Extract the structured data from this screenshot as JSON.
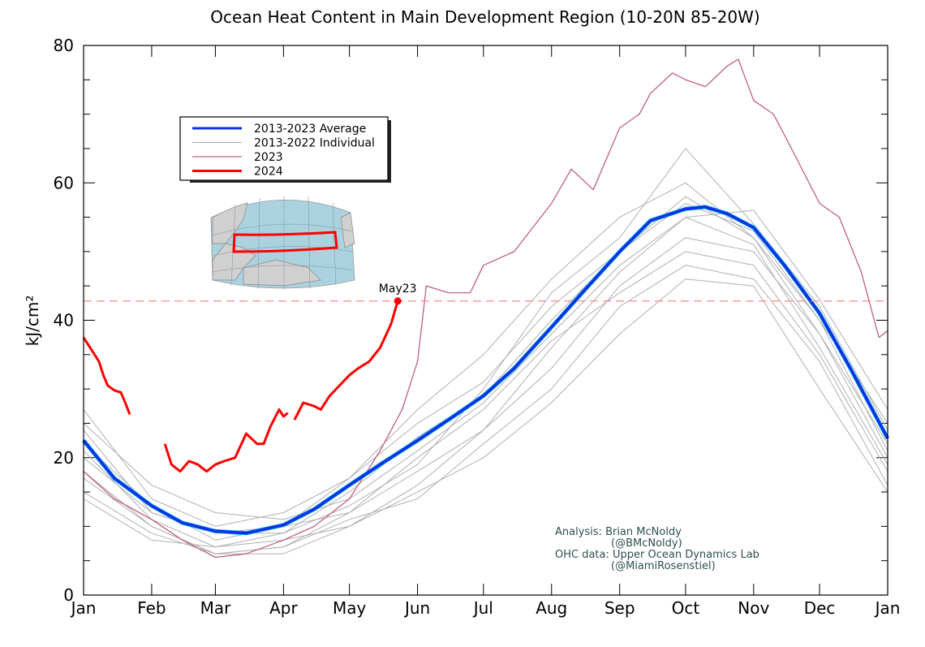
{
  "chart_data": {
    "type": "line",
    "title": "Ocean Heat Content in Main Development Region (10-20N 85-20W)",
    "ylabel": "kJ/cm²",
    "xlabel": "",
    "ylim": [
      0,
      80
    ],
    "xlim": [
      "2024-01-01",
      "2025-01-01"
    ],
    "yticks": [
      0,
      20,
      40,
      60,
      80
    ],
    "xticks": [
      {
        "date": "2024-01-01",
        "label": "Jan"
      },
      {
        "date": "2024-02-01",
        "label": "Feb"
      },
      {
        "date": "2024-03-01",
        "label": "Mar"
      },
      {
        "date": "2024-04-01",
        "label": "Apr"
      },
      {
        "date": "2024-05-01",
        "label": "May"
      },
      {
        "date": "2024-06-01",
        "label": "Jun"
      },
      {
        "date": "2024-07-01",
        "label": "Jul"
      },
      {
        "date": "2024-08-01",
        "label": "Aug"
      },
      {
        "date": "2024-09-01",
        "label": "Sep"
      },
      {
        "date": "2024-10-01",
        "label": "Oct"
      },
      {
        "date": "2024-11-01",
        "label": "Nov"
      },
      {
        "date": "2024-12-01",
        "label": "Dec"
      },
      {
        "date": "2025-01-01",
        "label": "Jan"
      }
    ],
    "grid": false,
    "legend_placement": "upper-left",
    "reference_line": {
      "value": 42.8,
      "color": "#f08080",
      "style": "dashed"
    },
    "annotation": {
      "label": "May23",
      "date": "2024-05-23",
      "value": 42.8
    },
    "credits": [
      "Analysis: Brian McNoldy",
      "(@BMcNoldy)",
      "OHC data: Upper Ocean Dynamics Lab",
      "(@MiamiRosenstiel)"
    ],
    "series": [
      {
        "name": "2013-2022 Individual",
        "color": "#b0b0b0",
        "width": 1,
        "lines": [
          {
            "dates": [
              "2024-01-01",
              "2024-02-01",
              "2024-03-01",
              "2024-04-01",
              "2024-05-01",
              "2024-06-01",
              "2024-07-01",
              "2024-08-01",
              "2024-09-01",
              "2024-10-01",
              "2024-11-01",
              "2024-12-01",
              "2025-01-01"
            ],
            "values": [
              27,
              14,
              10,
              12,
              17,
              25,
              31,
              42,
              50,
              58,
              52,
              40,
              25
            ]
          },
          {
            "dates": [
              "2024-01-01",
              "2024-02-01",
              "2024-03-01",
              "2024-04-01",
              "2024-05-01",
              "2024-06-01",
              "2024-07-01",
              "2024-08-01",
              "2024-09-01",
              "2024-10-01",
              "2024-11-01",
              "2024-12-01",
              "2025-01-01"
            ],
            "values": [
              25,
              16,
              12,
              11,
              14,
              21,
              28,
              38,
              48,
              55,
              56,
              43,
              27
            ]
          },
          {
            "dates": [
              "2024-01-01",
              "2024-02-01",
              "2024-03-01",
              "2024-04-01",
              "2024-05-01",
              "2024-06-01",
              "2024-07-01",
              "2024-08-01",
              "2024-09-01",
              "2024-10-01",
              "2024-11-01",
              "2024-12-01",
              "2025-01-01"
            ],
            "values": [
              24,
              12,
              9,
              9,
              13,
              19,
              30,
              44,
              52,
              65,
              54,
              42,
              24
            ]
          },
          {
            "dates": [
              "2024-01-01",
              "2024-02-01",
              "2024-03-01",
              "2024-04-01",
              "2024-05-01",
              "2024-06-01",
              "2024-07-01",
              "2024-08-01",
              "2024-09-01",
              "2024-10-01",
              "2024-11-01",
              "2024-12-01",
              "2025-01-01"
            ],
            "values": [
              22,
              13,
              8,
              10,
              17,
              27,
              35,
              46,
              55,
              60,
              52,
              38,
              22
            ]
          },
          {
            "dates": [
              "2024-01-01",
              "2024-02-01",
              "2024-03-01",
              "2024-04-01",
              "2024-05-01",
              "2024-06-01",
              "2024-07-01",
              "2024-08-01",
              "2024-09-01",
              "2024-10-01",
              "2024-11-01",
              "2024-12-01",
              "2025-01-01"
            ],
            "values": [
              21,
              11,
              7,
              9,
              15,
              23,
              29,
              40,
              50,
              57,
              53,
              40,
              21
            ]
          },
          {
            "dates": [
              "2024-01-01",
              "2024-02-01",
              "2024-03-01",
              "2024-04-01",
              "2024-05-01",
              "2024-06-01",
              "2024-07-01",
              "2024-08-01",
              "2024-09-01",
              "2024-10-01",
              "2024-11-01",
              "2024-12-01",
              "2025-01-01"
            ],
            "values": [
              20,
              12,
              9,
              10,
              12,
              18,
              24,
              33,
              45,
              52,
              50,
              38,
              20
            ]
          },
          {
            "dates": [
              "2024-01-01",
              "2024-02-01",
              "2024-03-01",
              "2024-04-01",
              "2024-05-01",
              "2024-06-01",
              "2024-07-01",
              "2024-08-01",
              "2024-09-01",
              "2024-10-01",
              "2024-11-01",
              "2024-12-01",
              "2025-01-01"
            ],
            "values": [
              18,
              10,
              6,
              6,
              10,
              16,
              24,
              36,
              47,
              55,
              51,
              36,
              19
            ]
          },
          {
            "dates": [
              "2024-01-01",
              "2024-02-01",
              "2024-03-01",
              "2024-04-01",
              "2024-05-01",
              "2024-06-01",
              "2024-07-01",
              "2024-08-01",
              "2024-09-01",
              "2024-10-01",
              "2024-11-01",
              "2024-12-01",
              "2025-01-01"
            ],
            "values": [
              17,
              10,
              6,
              7,
              12,
              20,
              27,
              37,
              44,
              50,
              48,
              35,
              18
            ]
          },
          {
            "dates": [
              "2024-01-01",
              "2024-02-01",
              "2024-03-01",
              "2024-04-01",
              "2024-05-01",
              "2024-06-01",
              "2024-07-01",
              "2024-08-01",
              "2024-09-01",
              "2024-10-01",
              "2024-11-01",
              "2024-12-01",
              "2025-01-01"
            ],
            "values": [
              15,
              9,
              6,
              7,
              11,
              14,
              22,
              30,
              42,
              48,
              46,
              34,
              16
            ]
          },
          {
            "dates": [
              "2024-01-01",
              "2024-02-01",
              "2024-03-01",
              "2024-04-01",
              "2024-05-01",
              "2024-06-01",
              "2024-07-01",
              "2024-08-01",
              "2024-09-01",
              "2024-10-01",
              "2024-11-01",
              "2024-12-01",
              "2025-01-01"
            ],
            "values": [
              14,
              8,
              7,
              8,
              10,
              15,
              20,
              28,
              38,
              46,
              45,
              30,
              15
            ]
          }
        ]
      },
      {
        "name": "2023",
        "color": "#c0607a",
        "width": 1.3,
        "lines": [
          {
            "dates": [
              "2024-01-01",
              "2024-01-15",
              "2024-02-01",
              "2024-02-15",
              "2024-03-01",
              "2024-03-15",
              "2024-04-01",
              "2024-04-15",
              "2024-05-01",
              "2024-05-15",
              "2024-05-25",
              "2024-06-01",
              "2024-06-05",
              "2024-06-15",
              "2024-06-25",
              "2024-07-01",
              "2024-07-15",
              "2024-08-01",
              "2024-08-10",
              "2024-08-20",
              "2024-09-01",
              "2024-09-10",
              "2024-09-15",
              "2024-09-25",
              "2024-10-01",
              "2024-10-10",
              "2024-10-20",
              "2024-10-25",
              "2024-11-01",
              "2024-11-10",
              "2024-11-15",
              "2024-12-01",
              "2024-12-10",
              "2024-12-20",
              "2024-12-28",
              "2025-01-01"
            ],
            "values": [
              18,
              14,
              11,
              8,
              5.5,
              6,
              8,
              10,
              14,
              21,
              27,
              34,
              45,
              44,
              44,
              48,
              50,
              57,
              62,
              59,
              68,
              70,
              73,
              76,
              75,
              74,
              77,
              78,
              72,
              70,
              67,
              57,
              55,
              47,
              37.5,
              38.5
            ]
          }
        ]
      },
      {
        "name": "2013-2023 Average",
        "color": "#1030e0",
        "width": 3.5,
        "lines": [
          {
            "dates": [
              "2024-01-01",
              "2024-01-15",
              "2024-02-01",
              "2024-02-15",
              "2024-03-01",
              "2024-03-15",
              "2024-04-01",
              "2024-04-15",
              "2024-05-01",
              "2024-05-15",
              "2024-06-01",
              "2024-06-15",
              "2024-07-01",
              "2024-07-15",
              "2024-08-01",
              "2024-08-15",
              "2024-09-01",
              "2024-09-15",
              "2024-10-01",
              "2024-10-10",
              "2024-10-20",
              "2024-11-01",
              "2024-11-15",
              "2024-12-01",
              "2024-12-15",
              "2025-01-01"
            ],
            "values": [
              22.5,
              17,
              13,
              10.5,
              9.3,
              9.0,
              10.2,
              12.5,
              16,
              19,
              22.5,
              25.5,
              29,
              33,
              39,
              44,
              50,
              54.5,
              56.2,
              56.5,
              55.5,
              53.5,
              48,
              41,
              33,
              22.8
            ]
          }
        ]
      },
      {
        "name": "2024",
        "color": "#ff0000",
        "width": 3,
        "lines": [
          {
            "dates": [
              "2024-01-01",
              "2024-01-05",
              "2024-01-08",
              "2024-01-10",
              "2024-01-12",
              "2024-01-15",
              "2024-01-18",
              "2024-01-20",
              "2024-01-22"
            ],
            "values": [
              37.5,
              35.5,
              34,
              32,
              30.5,
              29.8,
              29.5,
              28,
              26.3
            ]
          },
          {
            "dates": [
              "2024-02-07",
              "2024-02-10",
              "2024-02-14",
              "2024-02-18",
              "2024-02-22",
              "2024-02-26",
              "2024-03-01",
              "2024-03-05",
              "2024-03-10",
              "2024-03-15",
              "2024-03-20",
              "2024-03-23",
              "2024-03-26",
              "2024-03-30",
              "2024-04-01",
              "2024-04-03"
            ],
            "values": [
              22,
              19,
              18,
              19.5,
              19,
              18,
              19,
              19.5,
              20,
              23.5,
              22,
              22,
              24.5,
              27,
              26,
              26.5
            ]
          },
          {
            "dates": [
              "2024-04-06",
              "2024-04-10",
              "2024-04-15",
              "2024-04-18",
              "2024-04-22",
              "2024-05-01",
              "2024-05-05",
              "2024-05-10",
              "2024-05-15",
              "2024-05-20",
              "2024-05-23"
            ],
            "values": [
              25.5,
              28,
              27.5,
              27,
              29,
              32,
              33,
              34,
              36,
              39.5,
              42.8
            ]
          }
        ]
      }
    ]
  }
}
